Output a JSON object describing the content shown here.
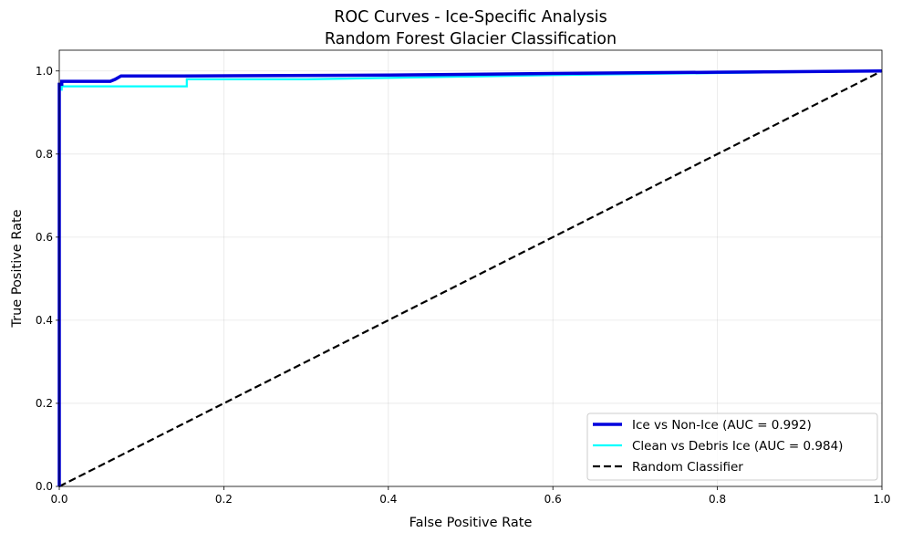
{
  "chart_data": {
    "type": "line",
    "title": "ROC Curves - Ice-Specific Analysis",
    "subtitle": "Random Forest Glacier Classification",
    "xlabel": "False Positive Rate",
    "ylabel": "True Positive Rate",
    "xlim": [
      0.0,
      1.0
    ],
    "ylim": [
      0.0,
      1.05
    ],
    "xticks": [
      "0.0",
      "0.2",
      "0.4",
      "0.6",
      "0.8",
      "1.0"
    ],
    "yticks": [
      "0.0",
      "0.2",
      "0.4",
      "0.6",
      "0.8",
      "1.0"
    ],
    "grid": true,
    "legend_position": "lower-right",
    "series": [
      {
        "name": "Ice vs Non-Ice (AUC = 0.992)",
        "color": "#0000dd",
        "style": "solid",
        "x": [
          0.0,
          0.0,
          0.003,
          0.003,
          0.062,
          0.068,
          0.075,
          0.15,
          0.4,
          0.6,
          0.8,
          1.0
        ],
        "y": [
          0.0,
          0.968,
          0.968,
          0.975,
          0.975,
          0.98,
          0.988,
          0.988,
          0.99,
          0.994,
          0.997,
          1.0
        ]
      },
      {
        "name": "Clean vs Debris Ice (AUC = 0.984)",
        "color": "#00ffff",
        "style": "solid",
        "x": [
          0.0,
          0.0,
          0.003,
          0.003,
          0.155,
          0.155,
          0.3,
          0.6,
          0.8,
          1.0
        ],
        "y": [
          0.0,
          0.955,
          0.955,
          0.963,
          0.963,
          0.98,
          0.98,
          0.99,
          0.995,
          1.0
        ]
      },
      {
        "name": "Random Classifier",
        "color": "#000000",
        "style": "dashed",
        "x": [
          0.0,
          1.0
        ],
        "y": [
          0.0,
          1.0
        ]
      }
    ]
  }
}
